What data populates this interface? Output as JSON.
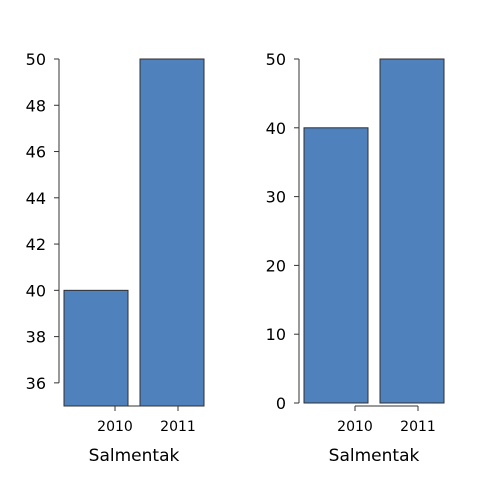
{
  "chart_data": [
    {
      "type": "bar",
      "categories": [
        "2010",
        "2011"
      ],
      "values": [
        40,
        50
      ],
      "title": "",
      "xlabel": "Salmentak",
      "ylabel": "",
      "ylim": [
        35,
        50
      ],
      "yticks": [
        36,
        38,
        40,
        42,
        44,
        46,
        48,
        50
      ],
      "grid": false,
      "bar_color": "#4f81bd"
    },
    {
      "type": "bar",
      "categories": [
        "2010",
        "2011"
      ],
      "values": [
        40,
        50
      ],
      "title": "",
      "xlabel": "Salmentak",
      "ylabel": "",
      "ylim": [
        0,
        50
      ],
      "yticks": [
        0,
        10,
        20,
        30,
        40,
        50
      ],
      "grid": false,
      "bar_color": "#4f81bd"
    }
  ]
}
